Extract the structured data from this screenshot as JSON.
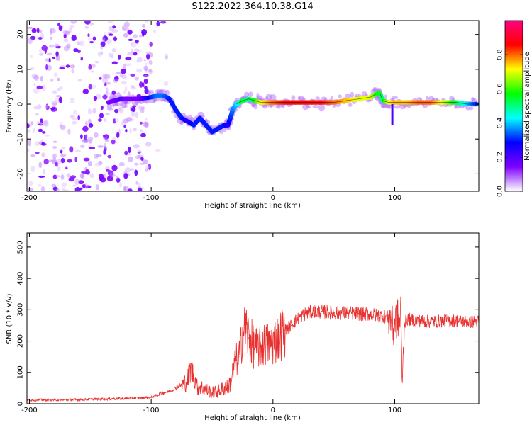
{
  "figure": {
    "title": "S122.2022.364.10.38.G14"
  },
  "colors": {
    "snr_line": "#e8312f",
    "frame": "#000000",
    "background": "#ffffff"
  },
  "chart_data": [
    {
      "type": "heatmap",
      "title": "",
      "xlabel": "Height of straight line (km)",
      "ylabel": "Frequency (Hz)",
      "xlim": [
        -202,
        169
      ],
      "ylim": [
        -25,
        24
      ],
      "x_ticks": [
        -200,
        -100,
        0,
        100
      ],
      "x_tick_labels": [
        "-200",
        "-100",
        "0",
        "100"
      ],
      "y_ticks": [
        -20,
        -10,
        0,
        10,
        20
      ],
      "y_tick_labels": [
        "-20",
        "-10",
        "0",
        "10",
        "20"
      ],
      "colorbar": {
        "label": "Normalized spectral amplitude",
        "range": [
          0,
          1
        ],
        "ticks": [
          0.0,
          0.2,
          0.4,
          0.6,
          0.8
        ],
        "tick_labels": [
          "0.0",
          "0.2",
          "0.4",
          "0.6",
          "0.8"
        ],
        "colormap": [
          "#ffffff",
          "#7f00ff",
          "#0000ff",
          "#00ffff",
          "#00ff00",
          "#ffff00",
          "#ff0000",
          "#ff0080"
        ]
      },
      "ridge": {
        "x": [
          -135,
          -130,
          -125,
          -120,
          -110,
          -100,
          -95,
          -90,
          -85,
          -80,
          -75,
          -70,
          -65,
          -60,
          -55,
          -50,
          -45,
          -40,
          -37,
          -35,
          -33,
          -30,
          -25,
          -20,
          -15,
          -10,
          -5,
          0,
          10,
          20,
          30,
          40,
          50,
          60,
          70,
          80,
          85,
          88,
          90,
          95,
          100,
          110,
          120,
          130,
          140,
          150,
          160,
          168
        ],
        "y": [
          0.5,
          1.0,
          1.5,
          1.5,
          1.5,
          2.0,
          2.5,
          2.5,
          1.5,
          -1.5,
          -4.0,
          -5.0,
          -6.0,
          -4.0,
          -6.0,
          -8.0,
          -7.0,
          -6.0,
          -6.0,
          -4.0,
          -1.5,
          0.0,
          1.0,
          1.5,
          1.0,
          0.5,
          0.5,
          0.5,
          0.5,
          0.5,
          0.5,
          0.5,
          0.5,
          1.0,
          1.5,
          2.0,
          3.0,
          3.0,
          1.0,
          0.5,
          0.5,
          0.5,
          0.5,
          0.5,
          0.5,
          0.5,
          0.0,
          0.0
        ],
        "amplitude": [
          0.15,
          0.15,
          0.2,
          0.15,
          0.15,
          0.3,
          0.35,
          0.35,
          0.3,
          0.3,
          0.3,
          0.25,
          0.3,
          0.3,
          0.3,
          0.3,
          0.3,
          0.3,
          0.25,
          0.3,
          0.35,
          0.4,
          0.55,
          0.5,
          0.55,
          0.7,
          0.75,
          0.8,
          0.85,
          0.85,
          0.85,
          0.85,
          0.8,
          0.75,
          0.7,
          0.7,
          0.6,
          0.55,
          0.5,
          0.7,
          0.75,
          0.75,
          0.8,
          0.8,
          0.7,
          0.55,
          0.4,
          0.3
        ]
      },
      "noise_region": {
        "x_range": [
          -202,
          -100
        ],
        "y_range": [
          -25,
          24
        ]
      },
      "spur": {
        "x": 98,
        "y_range": [
          -6,
          0
        ]
      }
    },
    {
      "type": "line",
      "title": "",
      "xlabel": "Height of straight line (km)",
      "ylabel": "SNR (10 * v/v)",
      "xlim": [
        -202,
        169
      ],
      "ylim": [
        0,
        545
      ],
      "x_ticks": [
        -200,
        -100,
        0,
        100
      ],
      "x_tick_labels": [
        "-200",
        "-100",
        "0",
        "100"
      ],
      "y_ticks": [
        0,
        100,
        200,
        300,
        400,
        500
      ],
      "y_tick_labels": [
        "0",
        "100",
        "200",
        "300",
        "400",
        "500"
      ],
      "series": [
        {
          "name": "",
          "x": [
            -202,
            -180,
            -160,
            -140,
            -120,
            -100,
            -95,
            -90,
            -85,
            -80,
            -75,
            -70,
            -68,
            -65,
            -62,
            -60,
            -55,
            -50,
            -45,
            -40,
            -35,
            -33,
            -30,
            -28,
            -25,
            -22,
            -20,
            -18,
            -15,
            -10,
            -5,
            0,
            5,
            10,
            15,
            20,
            25,
            30,
            40,
            50,
            60,
            70,
            80,
            90,
            95,
            97,
            99,
            100,
            102,
            104,
            105,
            106,
            108,
            110,
            120,
            130,
            140,
            150,
            160,
            169
          ],
          "y": [
            12,
            12,
            13,
            15,
            17,
            20,
            28,
            35,
            40,
            50,
            60,
            75,
            110,
            90,
            50,
            55,
            45,
            35,
            40,
            50,
            65,
            100,
            140,
            150,
            220,
            240,
            210,
            200,
            175,
            185,
            190,
            195,
            215,
            235,
            250,
            270,
            285,
            292,
            295,
            290,
            290,
            288,
            285,
            280,
            275,
            270,
            230,
            265,
            275,
            250,
            320,
            60,
            260,
            270,
            265,
            262,
            265,
            265,
            262,
            262
          ]
        }
      ]
    }
  ]
}
